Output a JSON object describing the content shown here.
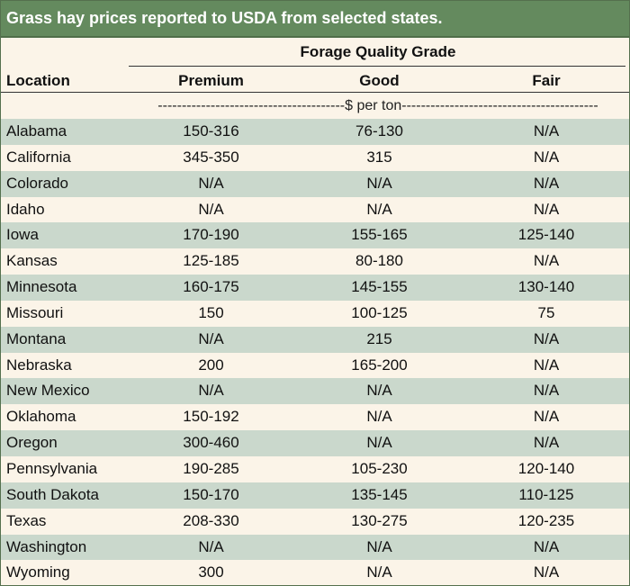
{
  "title": "Grass hay prices reported to USDA from selected states.",
  "header": {
    "group_label": "Forage Quality Grade",
    "location_label": "Location",
    "columns": [
      "Premium",
      "Good",
      "Fair"
    ]
  },
  "unit_label": "---------------------------------------$ per ton-----------------------------------------",
  "colors": {
    "title_bar": "#648a5e",
    "row_shade": "#cad8cc",
    "background": "#fbf4e8"
  },
  "rows": [
    {
      "location": "Alabama",
      "premium": "150-316",
      "good": "76-130",
      "fair": "N/A"
    },
    {
      "location": "California",
      "premium": "345-350",
      "good": "315",
      "fair": "N/A"
    },
    {
      "location": "Colorado",
      "premium": "N/A",
      "good": "N/A",
      "fair": "N/A"
    },
    {
      "location": "Idaho",
      "premium": "N/A",
      "good": "N/A",
      "fair": "N/A"
    },
    {
      "location": "Iowa",
      "premium": "170-190",
      "good": "155-165",
      "fair": "125-140"
    },
    {
      "location": "Kansas",
      "premium": "125-185",
      "good": "80-180",
      "fair": "N/A"
    },
    {
      "location": "Minnesota",
      "premium": "160-175",
      "good": "145-155",
      "fair": "130-140"
    },
    {
      "location": "Missouri",
      "premium": "150",
      "good": "100-125",
      "fair": "75"
    },
    {
      "location": "Montana",
      "premium": "N/A",
      "good": "215",
      "fair": "N/A"
    },
    {
      "location": "Nebraska",
      "premium": "200",
      "good": "165-200",
      "fair": "N/A"
    },
    {
      "location": "New Mexico",
      "premium": "N/A",
      "good": "N/A",
      "fair": "N/A"
    },
    {
      "location": "Oklahoma",
      "premium": "150-192",
      "good": "N/A",
      "fair": "N/A"
    },
    {
      "location": "Oregon",
      "premium": "300-460",
      "good": "N/A",
      "fair": "N/A"
    },
    {
      "location": "Pennsylvania",
      "premium": "190-285",
      "good": "105-230",
      "fair": "120-140"
    },
    {
      "location": "South Dakota",
      "premium": "150-170",
      "good": "135-145",
      "fair": "110-125"
    },
    {
      "location": "Texas",
      "premium": "208-330",
      "good": "130-275",
      "fair": "120-235"
    },
    {
      "location": "Washington",
      "premium": "N/A",
      "good": "N/A",
      "fair": "N/A"
    },
    {
      "location": "Wyoming",
      "premium": "300",
      "good": "N/A",
      "fair": "N/A"
    }
  ]
}
